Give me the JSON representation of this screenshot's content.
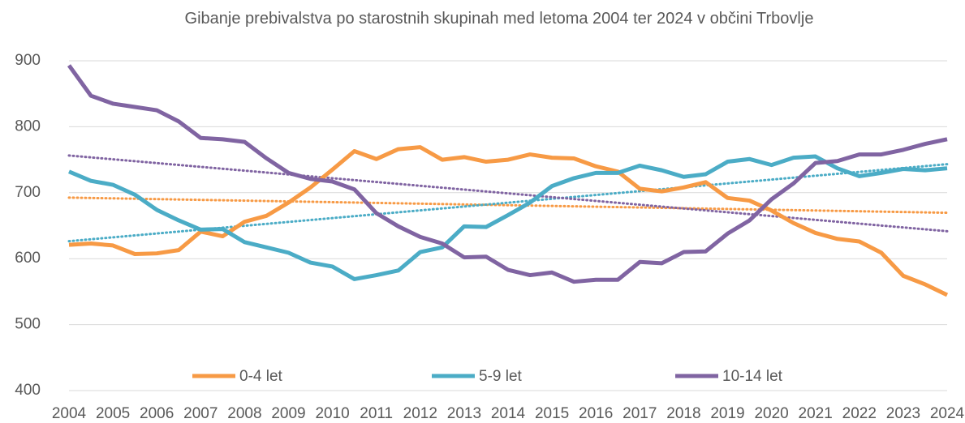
{
  "chart_data": {
    "type": "line",
    "title": "Gibanje prebivalstva po starostnih skupinah med letoma 2004 ter 2024 v občini Trbovlje",
    "categories": [
      "2004",
      null,
      "2005",
      null,
      "2006",
      null,
      "2007",
      null,
      "2008",
      null,
      "2009",
      null,
      "2010",
      null,
      "2011",
      null,
      "2012",
      null,
      "2013",
      null,
      "2014",
      null,
      "2015",
      null,
      "2016",
      null,
      "2017",
      null,
      "2018",
      null,
      "2019",
      null,
      "2020",
      null,
      "2021",
      null,
      "2022",
      null,
      "2023",
      null,
      "2024"
    ],
    "series": [
      {
        "name": "0-4 let",
        "color": "#f79a45",
        "values": [
          621,
          623,
          620,
          607,
          608,
          613,
          641,
          634,
          656,
          665,
          685,
          708,
          735,
          763,
          751,
          766,
          769,
          750,
          754,
          747,
          750,
          758,
          753,
          752,
          740,
          732,
          706,
          702,
          708,
          716,
          692,
          688,
          673,
          654,
          639,
          630,
          626,
          609,
          574,
          561,
          545
        ]
      },
      {
        "name": "5-9 let",
        "color": "#4bacc6",
        "values": [
          732,
          718,
          712,
          697,
          674,
          658,
          644,
          645,
          625,
          617,
          609,
          594,
          588,
          569,
          575,
          582,
          610,
          617,
          649,
          648,
          666,
          685,
          710,
          722,
          730,
          730,
          741,
          734,
          724,
          728,
          747,
          751,
          742,
          753,
          755,
          737,
          725,
          730,
          736,
          734,
          737
        ]
      },
      {
        "name": "10-14 let",
        "color": "#8064a2",
        "values": [
          893,
          847,
          835,
          830,
          825,
          808,
          783,
          781,
          777,
          752,
          730,
          721,
          717,
          705,
          669,
          649,
          633,
          623,
          602,
          603,
          583,
          575,
          579,
          565,
          568,
          568,
          595,
          593,
          610,
          611,
          638,
          658,
          690,
          714,
          745,
          748,
          758,
          758,
          765,
          774,
          781
        ]
      }
    ],
    "ylim": [
      400,
      900
    ],
    "yticks": [
      400,
      500,
      600,
      700,
      800,
      900
    ],
    "grid": true,
    "trendline": true,
    "legend": "bottom"
  }
}
